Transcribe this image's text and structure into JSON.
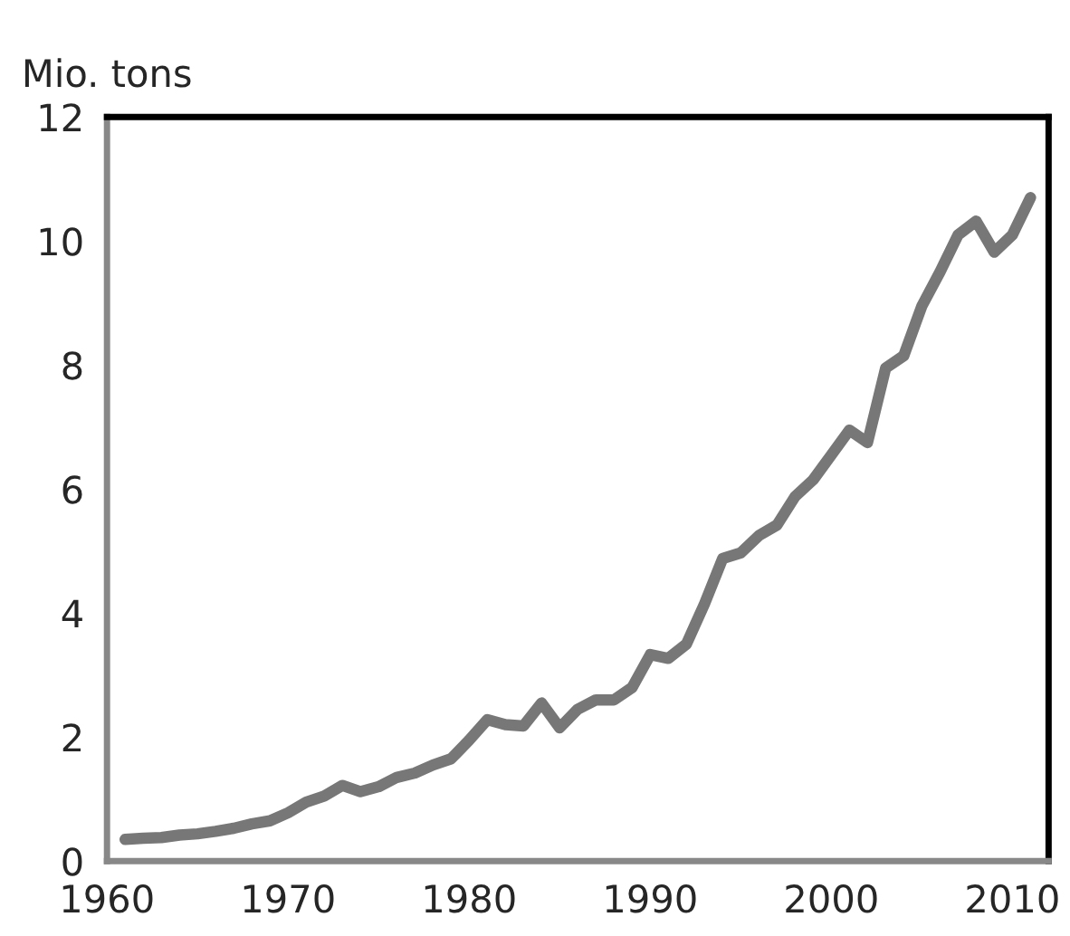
{
  "chart_data": {
    "type": "line",
    "ylabel": "Mio. tons",
    "x": [
      1961,
      1962,
      1963,
      1964,
      1965,
      1966,
      1967,
      1968,
      1969,
      1970,
      1971,
      1972,
      1973,
      1974,
      1975,
      1976,
      1977,
      1978,
      1979,
      1980,
      1981,
      1982,
      1983,
      1984,
      1985,
      1986,
      1987,
      1988,
      1989,
      1990,
      1991,
      1992,
      1993,
      1994,
      1995,
      1996,
      1997,
      1998,
      1999,
      2000,
      2001,
      2002,
      2003,
      2004,
      2005,
      2006,
      2007,
      2008,
      2009,
      2010,
      2011
    ],
    "series": [
      {
        "color": "#777777",
        "values": [
          0.35,
          0.37,
          0.38,
          0.42,
          0.44,
          0.48,
          0.53,
          0.6,
          0.65,
          0.78,
          0.95,
          1.05,
          1.22,
          1.12,
          1.2,
          1.35,
          1.42,
          1.55,
          1.65,
          1.95,
          2.28,
          2.2,
          2.18,
          2.55,
          2.15,
          2.45,
          2.6,
          2.6,
          2.8,
          3.33,
          3.27,
          3.5,
          4.15,
          4.88,
          4.97,
          5.25,
          5.42,
          5.88,
          6.15,
          6.55,
          6.95,
          6.75,
          7.95,
          8.15,
          8.95,
          9.5,
          10.1,
          10.32,
          9.82,
          10.1,
          10.7
        ]
      }
    ],
    "xlim": [
      1960,
      2012
    ],
    "xticks": [
      1960,
      1970,
      1980,
      1990,
      2000,
      2010
    ],
    "ylim": [
      0,
      12
    ],
    "yticks": [
      0,
      2,
      4,
      6,
      8,
      10,
      12
    ],
    "grid": false,
    "legend": false,
    "marker": "none",
    "line_style": "solid"
  }
}
